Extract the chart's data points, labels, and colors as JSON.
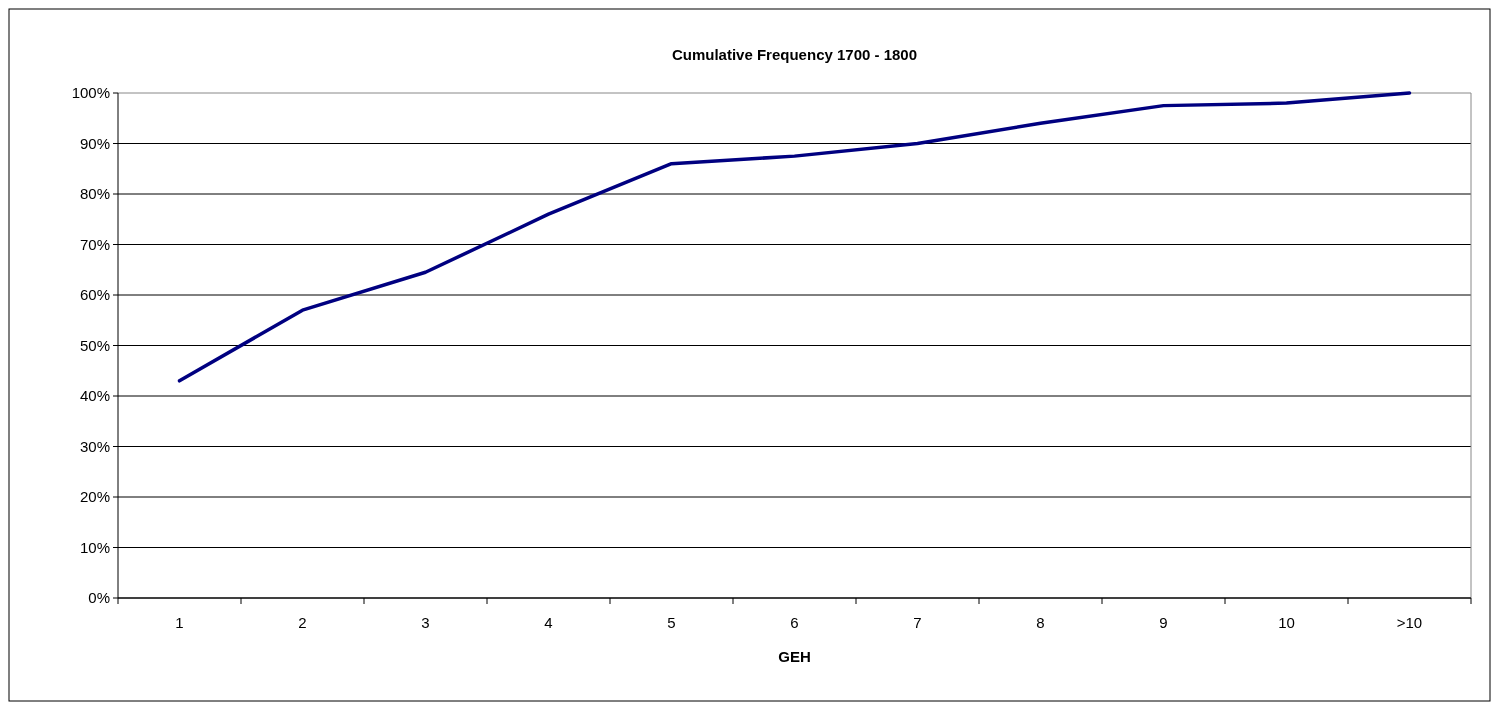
{
  "chart_data": {
    "type": "line",
    "title": "Cumulative Frequency 1700 - 1800",
    "xlabel": "GEH",
    "categories": [
      "1",
      "2",
      "3",
      "4",
      "5",
      "6",
      "7",
      "8",
      "9",
      "10",
      ">10"
    ],
    "series": [
      {
        "color": "#000080",
        "values": [
          43,
          57,
          64.5,
          76,
          86,
          87.5,
          90,
          94,
          97.5,
          98,
          100
        ]
      }
    ],
    "ylim": [
      0,
      100
    ],
    "yticks": [
      {
        "value": 0,
        "label": "0%"
      },
      {
        "value": 10,
        "label": "10%"
      },
      {
        "value": 20,
        "label": "20%"
      },
      {
        "value": 30,
        "label": "30%"
      },
      {
        "value": 40,
        "label": "40%"
      },
      {
        "value": 50,
        "label": "50%"
      },
      {
        "value": 60,
        "label": "60%"
      },
      {
        "value": 70,
        "label": "70%"
      },
      {
        "value": 80,
        "label": "80%"
      },
      {
        "value": 90,
        "label": "90%"
      },
      {
        "value": 100,
        "label": "100%"
      }
    ],
    "grid": "y",
    "marker": "none",
    "line_style": "solid"
  }
}
